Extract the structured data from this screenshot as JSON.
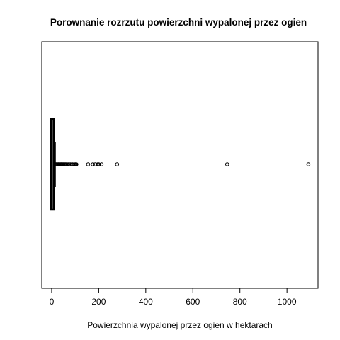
{
  "chart_data": {
    "type": "boxplot",
    "orientation": "horizontal",
    "title": "Porownanie rozrzutu powierzchni wypalonej przez ogien",
    "xlabel": "Powierzchnia wypalonej przez ogien w hektarach",
    "ylabel": "",
    "xlim": [
      -42,
      1132
    ],
    "xticks": [
      0,
      200,
      400,
      600,
      800,
      1000
    ],
    "box": {
      "min": 0,
      "q1": 0,
      "median": 0.5,
      "q3": 6.5,
      "whisker_high": 16
    },
    "outliers": [
      17,
      20,
      22,
      25,
      28,
      30,
      32,
      35,
      38,
      40,
      42,
      45,
      48,
      50,
      55,
      58,
      61,
      65,
      70,
      75,
      80,
      86,
      88,
      95,
      100,
      103,
      105,
      155,
      175,
      185,
      196,
      200,
      212,
      278,
      746,
      1091
    ],
    "grid": false,
    "legend": "none"
  }
}
